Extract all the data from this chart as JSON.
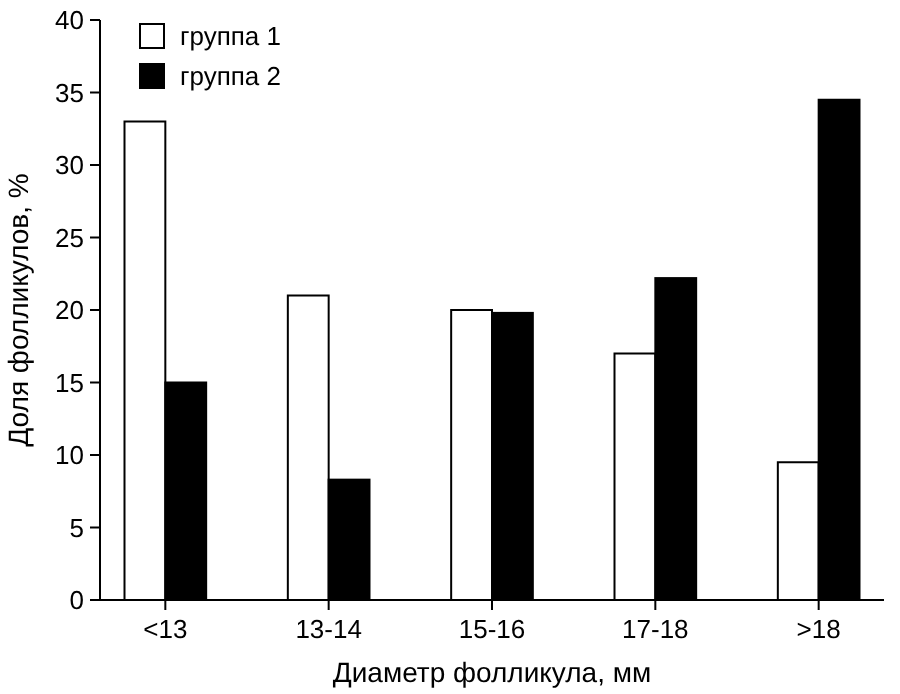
{
  "chart_data": {
    "type": "bar",
    "xlabel": "Диаметр фолликула, мм",
    "ylabel": "Доля фолликулов, %",
    "categories": [
      "<13",
      "13-14",
      "15-16",
      "17-18",
      ">18"
    ],
    "series": [
      {
        "name": "группа 1",
        "color": "#ffffff",
        "values": [
          33,
          21,
          20,
          17,
          9.5
        ]
      },
      {
        "name": "группа 2",
        "color": "#000000",
        "values": [
          15,
          8.3,
          19.8,
          22.2,
          34.5
        ]
      }
    ],
    "ylim": [
      0,
      40
    ],
    "yticks": [
      0,
      5,
      10,
      15,
      20,
      25,
      30,
      35,
      40
    ],
    "grid": false,
    "legend": "top left"
  }
}
